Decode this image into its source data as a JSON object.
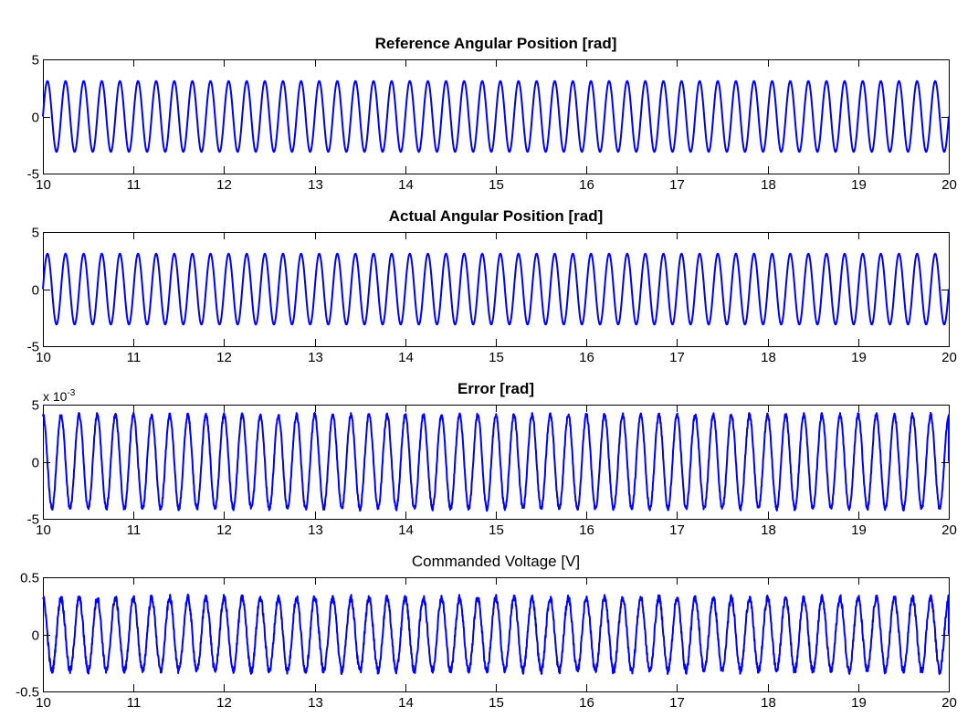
{
  "chart_data": [
    {
      "type": "line",
      "title": "Reference Angular Position [rad]",
      "title_bold": true,
      "xlim": [
        10,
        20
      ],
      "ylim": [
        -5,
        5
      ],
      "xticks": [
        "10",
        "11",
        "12",
        "13",
        "14",
        "15",
        "16",
        "17",
        "18",
        "19",
        "20"
      ],
      "yticks": [
        "-5",
        "0",
        "5"
      ],
      "exponent_label": "",
      "grid": false,
      "line_color": "#0000ff",
      "series": [
        {
          "waveform": "sine",
          "x_start": 10,
          "x_end": 20,
          "amplitude": 3.1,
          "frequency_hz": 5,
          "phase_deg": 0,
          "noise_level": 0,
          "final_value": 0
        }
      ]
    },
    {
      "type": "line",
      "title": "Actual Angular Position [rad]",
      "title_bold": true,
      "xlim": [
        10,
        20
      ],
      "ylim": [
        -5,
        5
      ],
      "xticks": [
        "10",
        "11",
        "12",
        "13",
        "14",
        "15",
        "16",
        "17",
        "18",
        "19",
        "20"
      ],
      "yticks": [
        "-5",
        "0",
        "5"
      ],
      "exponent_label": "",
      "grid": false,
      "line_color": "#0000ff",
      "series": [
        {
          "waveform": "sine",
          "x_start": 10,
          "x_end": 20,
          "amplitude": 3.1,
          "frequency_hz": 5,
          "phase_deg": 0,
          "noise_level": 0,
          "final_value": 0
        }
      ]
    },
    {
      "type": "line",
      "title": "Error [rad]",
      "title_bold": true,
      "xlim": [
        10,
        20
      ],
      "ylim": [
        -5,
        5
      ],
      "xticks": [
        "10",
        "11",
        "12",
        "13",
        "14",
        "15",
        "16",
        "17",
        "18",
        "19",
        "20"
      ],
      "yticks": [
        "-5",
        "0",
        "5"
      ],
      "exponent_label": "x 10-3",
      "exponent_base": "x 10",
      "exponent_power": "-3",
      "grid": false,
      "line_color": "#0000ff",
      "series": [
        {
          "waveform": "sine",
          "x_start": 10,
          "x_end": 20,
          "amplitude": 4.1,
          "frequency_hz": 5,
          "phase_deg": 90,
          "noise_level": 0.2,
          "final_value": 0
        }
      ]
    },
    {
      "type": "line",
      "title": "Commanded Voltage [V]",
      "title_bold": false,
      "xlim": [
        10,
        20
      ],
      "ylim": [
        -0.5,
        0.5
      ],
      "xticks": [
        "10",
        "11",
        "12",
        "13",
        "14",
        "15",
        "16",
        "17",
        "18",
        "19",
        "20"
      ],
      "yticks": [
        "-0.5",
        "0",
        "0.5"
      ],
      "exponent_label": "",
      "grid": false,
      "line_color": "#0000ff",
      "series": [
        {
          "waveform": "sine",
          "x_start": 10,
          "x_end": 20,
          "amplitude": 0.32,
          "frequency_hz": 5,
          "phase_deg": 90,
          "noise_level": 0.03,
          "final_value": 0
        }
      ]
    }
  ]
}
